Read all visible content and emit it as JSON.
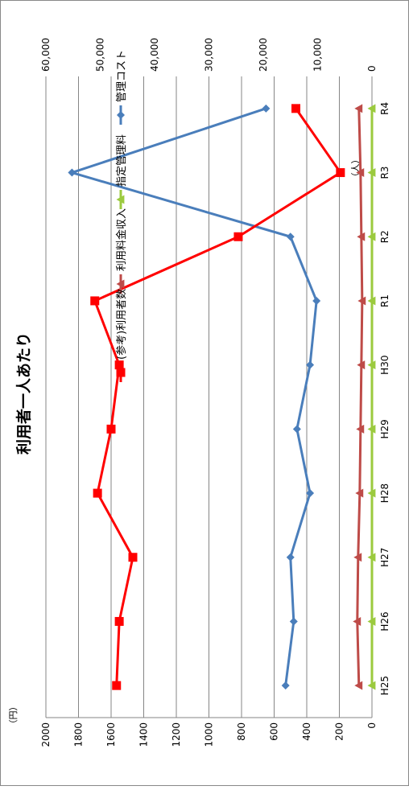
{
  "chart_data": {
    "type": "line",
    "title": "利用者一人あたり",
    "left_axis_unit": "（円）",
    "right_axis_unit": "（人）",
    "categories": [
      "H25",
      "H26",
      "H27",
      "H28",
      "H29",
      "H30",
      "R1",
      "R2",
      "R3",
      "R4"
    ],
    "left_axis": {
      "min": 0,
      "max": 2000,
      "ticks": [
        "0",
        "200",
        "400",
        "600",
        "800",
        "1000",
        "1200",
        "1400",
        "1600",
        "1800",
        "2000"
      ]
    },
    "right_axis": {
      "min": 0,
      "max": 60000,
      "ticks": [
        "0",
        "10,000",
        "20,000",
        "30,000",
        "40,000",
        "50,000",
        "60,000"
      ]
    },
    "grid": true,
    "legend_position": "right",
    "series": [
      {
        "name": "管理コスト",
        "axis": "left",
        "color": "#4a7ebb",
        "marker": "diamond",
        "values": [
          530,
          480,
          500,
          380,
          460,
          380,
          340,
          500,
          1840,
          650
        ]
      },
      {
        "name": "指定管理料",
        "axis": "left",
        "color": "#9bca3e",
        "marker": "triangle",
        "values": [
          0,
          0,
          0,
          0,
          0,
          0,
          0,
          0,
          0,
          0
        ]
      },
      {
        "name": "利用料金収入",
        "axis": "left",
        "color": "#be4b48",
        "marker": "triangle",
        "values": [
          80,
          90,
          85,
          75,
          70,
          65,
          60,
          65,
          70,
          80
        ]
      },
      {
        "name": "(参考)利用者数",
        "axis": "right",
        "color": "#ff0000",
        "marker": "square",
        "values": [
          47000,
          46500,
          44000,
          50500,
          48000,
          46500,
          51000,
          24600,
          5800,
          14000
        ]
      }
    ]
  }
}
